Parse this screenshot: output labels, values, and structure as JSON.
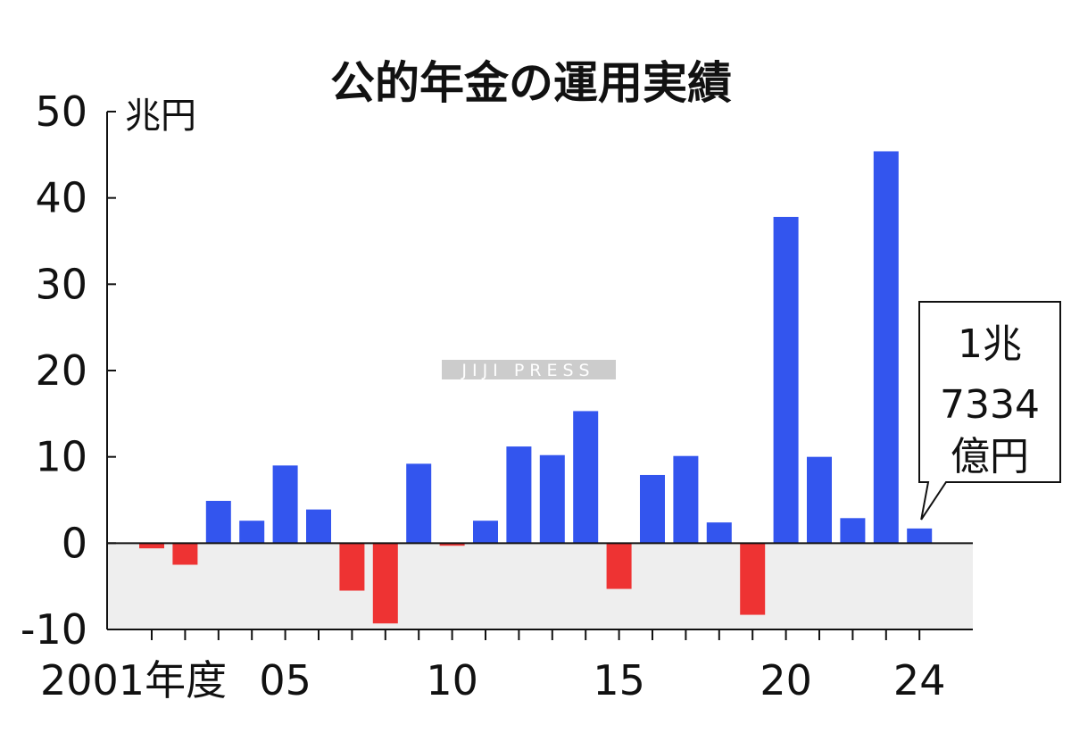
{
  "chart_data": {
    "type": "bar",
    "title": "公的年金の運用実績",
    "unit_label": "兆円",
    "x": [
      2001,
      2002,
      2003,
      2004,
      2005,
      2006,
      2007,
      2008,
      2009,
      2010,
      2011,
      2012,
      2013,
      2014,
      2015,
      2016,
      2017,
      2018,
      2019,
      2020,
      2021,
      2022,
      2023,
      2024
    ],
    "values": [
      -0.6,
      -2.5,
      4.9,
      2.6,
      9.0,
      3.9,
      -5.5,
      -9.3,
      9.2,
      -0.3,
      2.6,
      11.2,
      10.2,
      15.3,
      -5.3,
      7.9,
      10.1,
      2.4,
      -8.3,
      37.8,
      10.0,
      2.9,
      45.4,
      1.7
    ],
    "ylim": [
      -10,
      50
    ],
    "yticks": [
      "-10",
      "0",
      "10",
      "20",
      "30",
      "40",
      "50"
    ],
    "xtick_labels": [
      {
        "year": 2001,
        "label": "2001年度"
      },
      {
        "year": 2005,
        "label": "05"
      },
      {
        "year": 2010,
        "label": "10"
      },
      {
        "year": 2015,
        "label": "15"
      },
      {
        "year": 2020,
        "label": "20"
      },
      {
        "year": 2024,
        "label": "24"
      }
    ],
    "annotation": {
      "year": 2024,
      "lines": [
        "1兆",
        "7334",
        "億円"
      ]
    },
    "colors": {
      "positive": "#3355ee",
      "negative": "#ee3333",
      "negative_region": "#eeeeee"
    },
    "watermark": "JIJI PRESS"
  }
}
